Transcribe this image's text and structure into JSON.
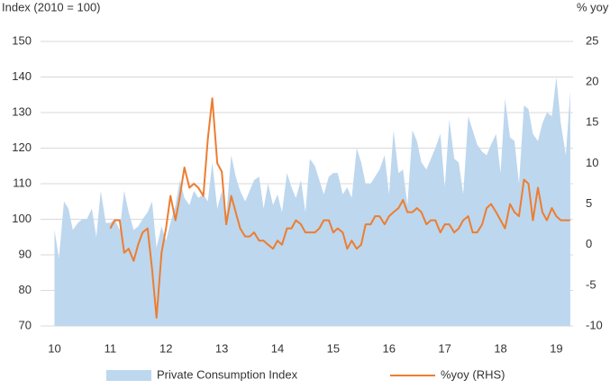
{
  "chart_data": {
    "type": "combo",
    "y_label": "Index (2010 = 100)",
    "y2_label": "% yoy",
    "xlim": [
      9.75,
      19.3
    ],
    "xticks": [
      10,
      11,
      12,
      13,
      14,
      15,
      16,
      17,
      18,
      19
    ],
    "ylim": [
      70,
      150
    ],
    "yticks": [
      70,
      80,
      90,
      100,
      110,
      120,
      130,
      140,
      150
    ],
    "y2lim": [
      -10,
      25
    ],
    "y2ticks": [
      -10,
      -5,
      0,
      5,
      10,
      15,
      20,
      25
    ],
    "grid": true,
    "x": [
      10,
      10.08,
      10.17,
      10.25,
      10.33,
      10.42,
      10.5,
      10.58,
      10.67,
      10.75,
      10.83,
      10.92,
      11,
      11.08,
      11.17,
      11.25,
      11.33,
      11.42,
      11.5,
      11.58,
      11.67,
      11.75,
      11.83,
      11.92,
      12,
      12.08,
      12.17,
      12.25,
      12.33,
      12.42,
      12.5,
      12.58,
      12.67,
      12.75,
      12.83,
      12.92,
      13,
      13.08,
      13.17,
      13.25,
      13.33,
      13.42,
      13.5,
      13.58,
      13.67,
      13.75,
      13.83,
      13.92,
      14,
      14.08,
      14.17,
      14.25,
      14.33,
      14.42,
      14.5,
      14.58,
      14.67,
      14.75,
      14.83,
      14.92,
      15,
      15.08,
      15.17,
      15.25,
      15.33,
      15.42,
      15.5,
      15.58,
      15.67,
      15.75,
      15.83,
      15.92,
      16,
      16.08,
      16.17,
      16.25,
      16.33,
      16.42,
      16.5,
      16.58,
      16.67,
      16.75,
      16.83,
      16.92,
      17,
      17.08,
      17.17,
      17.25,
      17.33,
      17.42,
      17.5,
      17.58,
      17.67,
      17.75,
      17.83,
      17.92,
      18,
      18.08,
      18.17,
      18.25,
      18.33,
      18.42,
      18.5,
      18.58,
      18.67,
      18.75,
      18.83,
      18.92,
      19,
      19.08,
      19.17,
      19.25
    ],
    "series": [
      {
        "name": "Private Consumption Index",
        "type": "area",
        "color": "#bdd7ee",
        "values": [
          97,
          89,
          105,
          103,
          97,
          99,
          100,
          100,
          103,
          95,
          108,
          99,
          99,
          100,
          97,
          108,
          102,
          97,
          98,
          100,
          102,
          105,
          92,
          98,
          94,
          99,
          104,
          111,
          106,
          104,
          108,
          106,
          107,
          105,
          116,
          103,
          108,
          101,
          118,
          112,
          108,
          105,
          108,
          111,
          112,
          103,
          110,
          104,
          107,
          102,
          113,
          109,
          106,
          111,
          102,
          117,
          115,
          111,
          107,
          112,
          113,
          113,
          107,
          109,
          106,
          120,
          116,
          110,
          110,
          112,
          114,
          118,
          107,
          125,
          113,
          114,
          104,
          125,
          122,
          116,
          114,
          117,
          120,
          124,
          109,
          128,
          117,
          116,
          107,
          129,
          125,
          121,
          119,
          118,
          121,
          124,
          113,
          134,
          123,
          122,
          110,
          132,
          131,
          124,
          122,
          127,
          130,
          129,
          140,
          127,
          118,
          136
        ]
      },
      {
        "name": "%yoy (RHS)",
        "type": "line",
        "axis": "y2",
        "color": "#ed7d31",
        "values": [
          null,
          null,
          null,
          null,
          null,
          null,
          null,
          null,
          null,
          null,
          null,
          null,
          2,
          3,
          3,
          -1,
          -0.5,
          -2,
          0,
          1.5,
          2,
          -3,
          -9,
          -1,
          2,
          6,
          3,
          6,
          9.5,
          7,
          7.5,
          7,
          6,
          13,
          18,
          10,
          9,
          2.5,
          6,
          4,
          2,
          1,
          1,
          1.5,
          0.5,
          0.5,
          0,
          -0.5,
          0.5,
          0,
          2,
          2,
          3,
          2.5,
          1.5,
          1.5,
          1.5,
          2,
          3,
          3,
          1.5,
          2,
          1.5,
          -0.5,
          0.5,
          -0.5,
          0,
          2.5,
          2.5,
          3.5,
          3.5,
          2.5,
          3.5,
          4,
          4.5,
          5.5,
          4,
          4,
          4.5,
          4,
          2.5,
          3,
          3,
          1.5,
          2.5,
          2.5,
          1.5,
          2,
          3,
          3.5,
          1.5,
          1.5,
          2.5,
          4.5,
          5,
          4,
          3,
          2,
          5,
          4,
          3.5,
          8,
          7.5,
          3,
          7,
          4,
          3,
          4.5,
          3.5,
          3,
          3,
          3
        ]
      }
    ]
  }
}
